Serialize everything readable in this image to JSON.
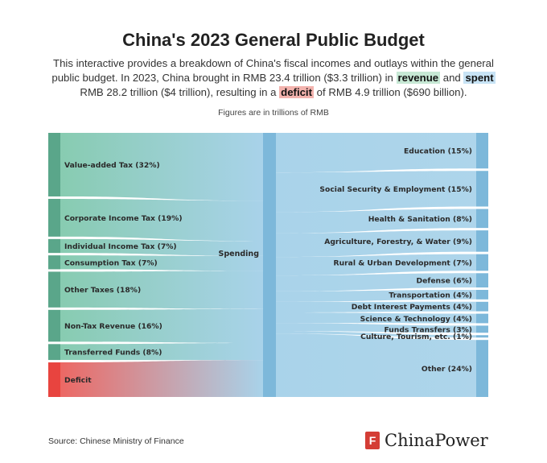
{
  "header": {
    "title": "China's 2023 General Public Budget",
    "intro_part1": "This interactive provides a breakdown of China's fiscal incomes and outlays within the general public budget. In 2023, China brought in RMB 23.4 trillion ($3.3 trillion) in ",
    "kw_revenue": "revenue",
    "intro_part2": " and ",
    "kw_spent": "spent",
    "intro_part3": " RMB 28.2 trillion ($4 trillion), resulting in a ",
    "kw_deficit": "deficit",
    "intro_part4": " of RMB 4.9 trillion ($690 billion).",
    "units_note": "Figures are in trillions of RMB"
  },
  "colors": {
    "revenue": "#6bbf9e",
    "revenue_dark": "#5aa68a",
    "deficit": "#e8443f",
    "spending": "#8ec5e3",
    "spending_dark": "#7db8da"
  },
  "chart_data": {
    "type": "sankey",
    "center_node": "Spending",
    "sources": [
      {
        "label": "Value-added Tax (32%)",
        "value": 32,
        "kind": "revenue"
      },
      {
        "label": "Corporate Income Tax (19%)",
        "value": 19,
        "kind": "revenue"
      },
      {
        "label": "Individual Income Tax (7%)",
        "value": 7,
        "kind": "revenue"
      },
      {
        "label": "Consumption Tax (7%)",
        "value": 7,
        "kind": "revenue"
      },
      {
        "label": "Other Taxes (18%)",
        "value": 18,
        "kind": "revenue"
      },
      {
        "label": "Non-Tax Revenue (16%)",
        "value": 16,
        "kind": "revenue"
      },
      {
        "label": "Transferred Funds (8%)",
        "value": 8,
        "kind": "revenue"
      },
      {
        "label": "Deficit",
        "value": 17.4,
        "kind": "deficit"
      }
    ],
    "targets": [
      {
        "label": "Education (15%)",
        "value": 15
      },
      {
        "label": "Social Security & Employment (15%)",
        "value": 15
      },
      {
        "label": "Health & Sanitation (8%)",
        "value": 8
      },
      {
        "label": "Agriculture, Forestry, & Water (9%)",
        "value": 9
      },
      {
        "label": "Rural & Urban Development (7%)",
        "value": 7
      },
      {
        "label": "Defense (6%)",
        "value": 6
      },
      {
        "label": "Transportation (4%)",
        "value": 4
      },
      {
        "label": "Debt Interest Payments (4%)",
        "value": 4
      },
      {
        "label": "Science & Technology (4%)",
        "value": 4
      },
      {
        "label": "Funds Transfers (3%)",
        "value": 3
      },
      {
        "label": "Culture, Tourism, etc. (1%)",
        "value": 1
      },
      {
        "label": "Other (24%)",
        "value": 24
      }
    ]
  },
  "footer": {
    "source": "Source: Chinese Ministry of Finance",
    "brand_mark": "F",
    "brand": "ChinaPower"
  }
}
